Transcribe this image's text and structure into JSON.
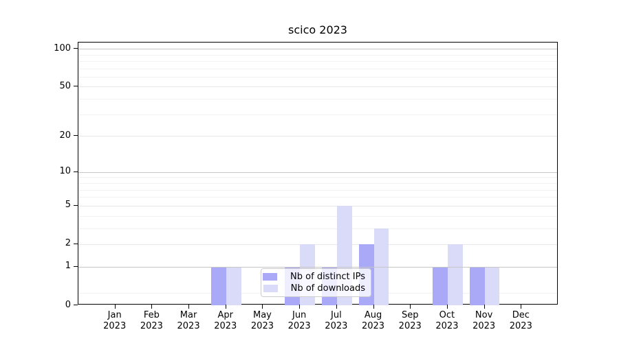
{
  "title": "scico 2023",
  "chart_data": {
    "type": "bar",
    "title": "scico 2023",
    "categories": [
      "Jan",
      "Feb",
      "Mar",
      "Apr",
      "May",
      "Jun",
      "Jul",
      "Aug",
      "Sep",
      "Oct",
      "Nov",
      "Dec"
    ],
    "year": "2023",
    "series": [
      {
        "name": "Nb of distinct IPs",
        "color": "#a9a9f8",
        "values": [
          0,
          0,
          0,
          1,
          0,
          1,
          1,
          2,
          0,
          1,
          1,
          0
        ]
      },
      {
        "name": "Nb of downloads",
        "color": "#dadaf9",
        "values": [
          0,
          0,
          0,
          1,
          0,
          2,
          5,
          3,
          0,
          2,
          1,
          0
        ]
      }
    ],
    "y_axis": {
      "scale": "log1p",
      "ticks": [
        0,
        1,
        2,
        5,
        10,
        20,
        50,
        100
      ],
      "emphasized_gridlines": [
        1,
        10,
        100
      ],
      "light_gridlines": [
        2,
        5,
        20,
        50
      ],
      "minor_gridlines": [
        0.25,
        3,
        4,
        6,
        7,
        8,
        9,
        30,
        40,
        60,
        70,
        80,
        90
      ],
      "max": 112
    },
    "xlabel": "",
    "ylabel": "",
    "grid": true,
    "legend_position": "lower center"
  },
  "colors": {
    "bar_ips": "#a9a9f8",
    "bar_downloads": "#dadaf9",
    "grid_major": "#c6c6c6",
    "grid_light": "#e7e7e7",
    "grid_minor": "#f2f2f2",
    "axis": "#000000"
  }
}
